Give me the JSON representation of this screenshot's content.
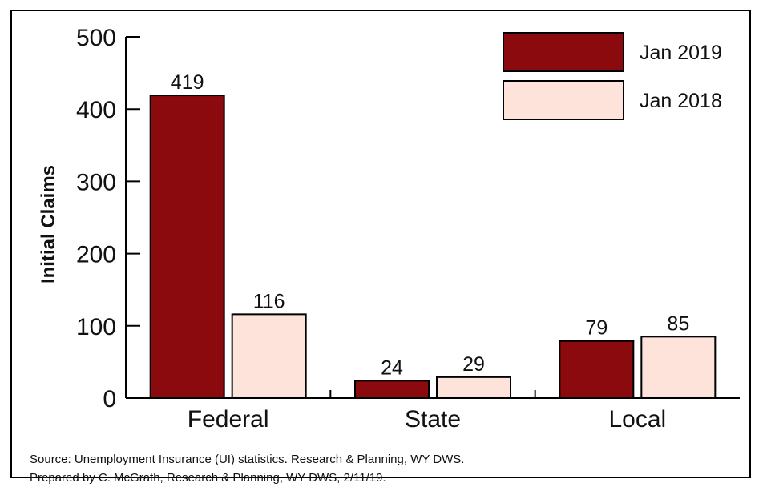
{
  "chart_data": {
    "type": "bar",
    "categories": [
      "Federal",
      "State",
      "Local"
    ],
    "series": [
      {
        "name": "Jan 2019",
        "values": [
          419,
          24,
          79
        ],
        "color": "#8b0a0e"
      },
      {
        "name": "Jan 2018",
        "values": [
          116,
          29,
          85
        ],
        "color": "#fde3da"
      }
    ],
    "title": "",
    "xlabel": "",
    "ylabel": "Initial Claims",
    "ylim": [
      0,
      500
    ],
    "yticks": [
      0,
      100,
      200,
      300,
      400,
      500
    ],
    "grid": false,
    "legend_position": "top-right"
  },
  "footer": {
    "source": "Source: Unemployment Insurance (UI) statistics. Research & Planning, WY DWS.",
    "prepared": "Prepared by C. McGrath, Research & Planning, WY DWS, 2/11/19."
  }
}
